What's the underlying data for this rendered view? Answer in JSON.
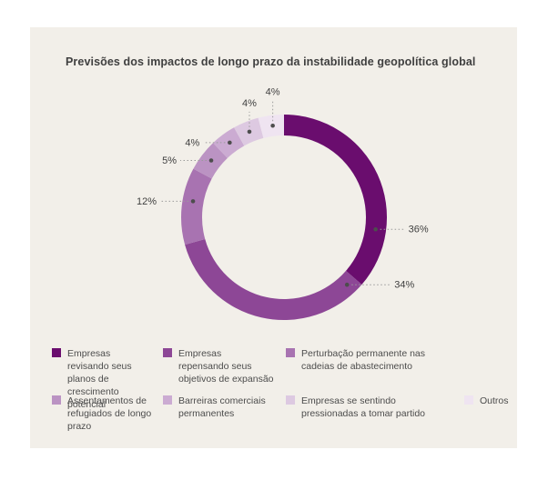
{
  "page": {
    "background_color": "#ffffff",
    "panel_color": "#f2efe9"
  },
  "chart_data": {
    "type": "pie",
    "subtype": "donut",
    "title": "Previsões dos impactos de longo prazo da instabilidade geopolítica global",
    "legend_position": "bottom",
    "direction": "clockwise",
    "start_angle_deg": 0,
    "text_color": "#3f3f3f",
    "leader_line_color": "#9b9b9b",
    "leader_dot_color": "#4d4d4d",
    "segments": [
      {
        "label": "Empresas revisando seus planos de crescimento potencial",
        "value": 36,
        "display": "36%",
        "color": "#6a0d6e"
      },
      {
        "label": "Empresas repensando seus objetivos de expansão",
        "value": 34,
        "display": "34%",
        "color": "#8d4796"
      },
      {
        "label": "Perturbação permanente nas cadeias de abastecimento",
        "value": 12,
        "display": "12%",
        "color": "#a873b1"
      },
      {
        "label": "Assentamentos de refugiados de longo prazo",
        "value": 5,
        "display": "5%",
        "color": "#bb93c3"
      },
      {
        "label": "Barreiras comerciais permanentes",
        "value": 4,
        "display": "4%",
        "color": "#cbabd2"
      },
      {
        "label": "Empresas se sentindo pressionadas a tomar partido",
        "value": 4,
        "display": "4%",
        "color": "#ddc9e1"
      },
      {
        "label": "Outros",
        "value": 4,
        "display": "4%",
        "color": "#efe4f1"
      }
    ]
  }
}
